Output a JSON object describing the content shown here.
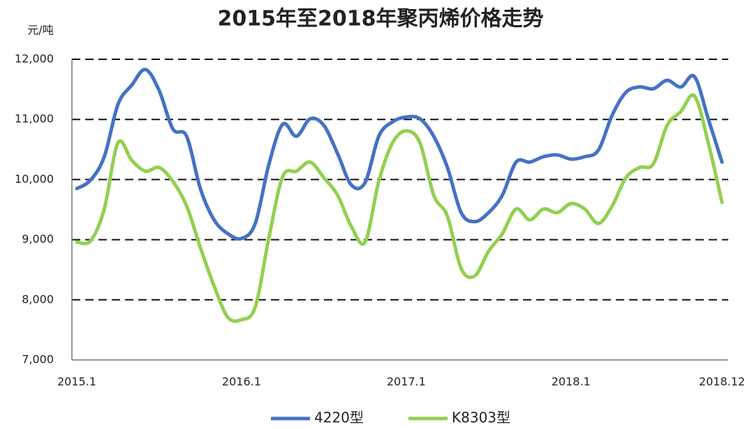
{
  "chart_data": {
    "type": "line",
    "title": "2015年至2018年聚丙烯价格走势",
    "ylabel": "元/吨",
    "categories": [
      "2015.1",
      null,
      null,
      null,
      null,
      null,
      null,
      null,
      null,
      null,
      null,
      null,
      "2016.1",
      null,
      null,
      null,
      null,
      null,
      null,
      null,
      null,
      null,
      null,
      null,
      "2017.1",
      null,
      null,
      null,
      null,
      null,
      null,
      null,
      null,
      null,
      null,
      null,
      "2018.1",
      null,
      null,
      null,
      null,
      null,
      null,
      null,
      null,
      null,
      null,
      "2018.12"
    ],
    "series": [
      {
        "name": "4220型",
        "color": "#4472c4",
        "values": [
          9850,
          9990,
          10380,
          11250,
          11570,
          11830,
          11480,
          10840,
          10720,
          9850,
          9330,
          9100,
          9020,
          9270,
          10260,
          10920,
          10720,
          11010,
          10900,
          10430,
          9910,
          9950,
          10720,
          10960,
          11040,
          11010,
          10720,
          10200,
          9450,
          9300,
          9450,
          9740,
          10290,
          10290,
          10380,
          10410,
          10340,
          10380,
          10490,
          11070,
          11450,
          11540,
          11510,
          11650,
          11540,
          11710,
          11010,
          10290
        ]
      },
      {
        "name": "K8303型",
        "color": "#92d050",
        "values": [
          8960,
          8980,
          9510,
          10610,
          10320,
          10140,
          10200,
          9970,
          9560,
          8870,
          8230,
          7710,
          7670,
          7880,
          9040,
          10050,
          10140,
          10290,
          10030,
          9740,
          9220,
          8960,
          9970,
          10610,
          10810,
          10610,
          9740,
          9390,
          8520,
          8400,
          8810,
          9100,
          9510,
          9330,
          9510,
          9450,
          9600,
          9510,
          9270,
          9560,
          10030,
          10200,
          10260,
          10900,
          11130,
          11390,
          10610,
          9620
        ]
      }
    ],
    "ylim": [
      7000,
      12000
    ],
    "yticks": [
      {
        "value": 7000,
        "label": "7,000"
      },
      {
        "value": 8000,
        "label": "8,000"
      },
      {
        "value": 9000,
        "label": "9,000"
      },
      {
        "value": 10000,
        "label": "10,000"
      },
      {
        "value": 11000,
        "label": "11,000"
      },
      {
        "value": 12000,
        "label": "12,000"
      }
    ],
    "grid": true,
    "legend": "bottom"
  }
}
